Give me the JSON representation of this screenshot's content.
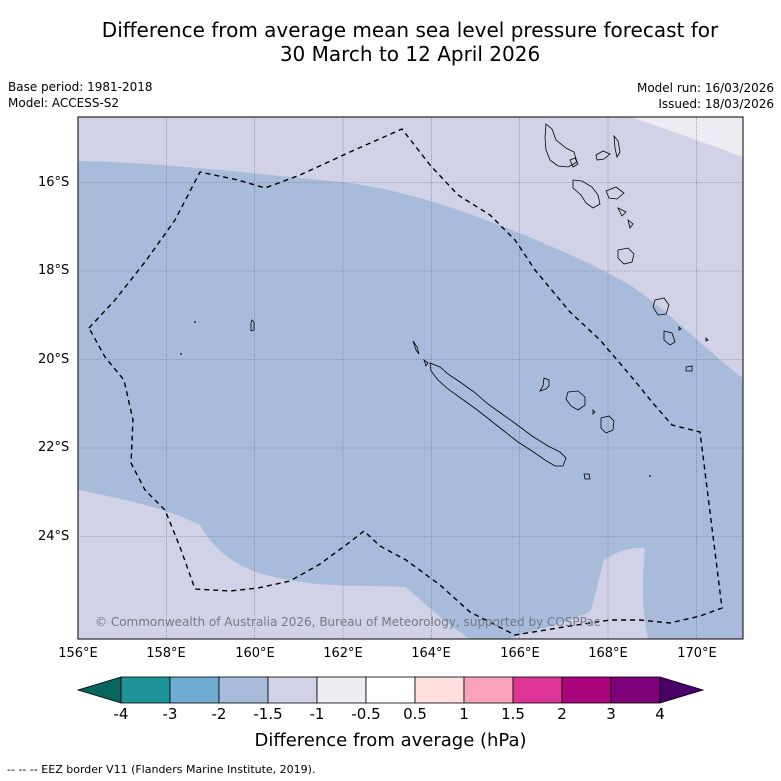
{
  "title": {
    "line1": "Difference from average mean sea level pressure forecast for",
    "line2": "30 March to 12 April 2026"
  },
  "meta": {
    "base_period": "Base period: 1981-2018",
    "model": "Model: ACCESS-S2",
    "model_run": "Model run: 16/03/2026",
    "issued": "Issued: 18/03/2026"
  },
  "map": {
    "region": "New Caledonia and surrounding ocean",
    "lon_range": [
      156.0,
      171.0
    ],
    "lat_range": [
      -26.2,
      -14.6
    ],
    "lat_ticks": [
      "16°S",
      "18°S",
      "20°S",
      "22°S",
      "24°S"
    ],
    "lon_ticks": [
      "156°E",
      "158°E",
      "160°E",
      "162°E",
      "164°E",
      "166°E",
      "168°E",
      "170°E"
    ],
    "copyright": "© Commonwealth of Australia 2026, Bureau of Meteorology, supported by COSPPac",
    "colors": {
      "band_-2_-1.5": "#a9bbdb",
      "band_-1.5_-1": "#d1d2e7",
      "band_-1_-0.5": "#eeebf3",
      "coast": "#000000",
      "eez": "#000000"
    }
  },
  "colorbar": {
    "labels": [
      "-4",
      "-3",
      "-2",
      "-1.5",
      "-1",
      "-0.5",
      "0.5",
      "1",
      "1.5",
      "2",
      "3",
      "4"
    ],
    "colors": [
      "#06665d",
      "#1e9499",
      "#6eabd3",
      "#a9bbdb",
      "#d1d2e7",
      "#eeebf3",
      "#ffffff",
      "#fedfdd",
      "#f9a3bb",
      "#de3596",
      "#ab037c",
      "#7d0179",
      "#4a0068"
    ],
    "title": "Difference from average (hPa)"
  },
  "footer": "--  --  -- EEZ border V11 (Flanders Marine Institute, 2019)."
}
